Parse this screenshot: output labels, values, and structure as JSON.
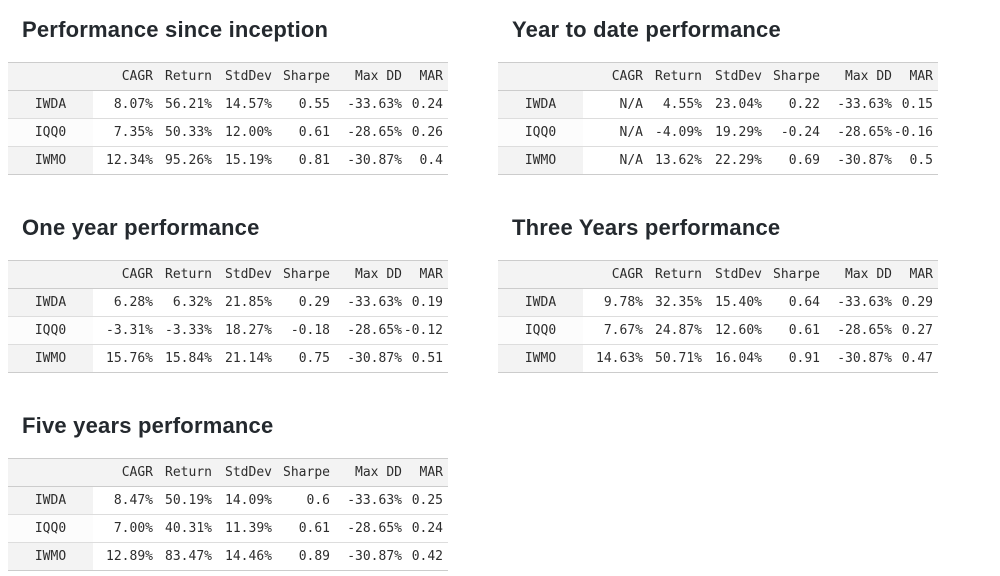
{
  "colors": {
    "page_background": "#ffffff",
    "header_row_bg": "#f3f3f3",
    "odd_row_index_bg": "#f3f3f3",
    "table_border": "#cccccc",
    "row_divider": "#dddddd",
    "table_text": "#2d2d2d",
    "title_text": "#24292e"
  },
  "chart_data": [
    {
      "type": "table",
      "title": "Performance since inception",
      "columns": [
        "",
        "CAGR",
        "Return",
        "StdDev",
        "Sharpe",
        "Max DD",
        "MAR"
      ],
      "rows": [
        [
          "IWDA",
          "8.07%",
          "56.21%",
          "14.57%",
          "0.55",
          "-33.63%",
          "0.24"
        ],
        [
          "IQQ0",
          "7.35%",
          "50.33%",
          "12.00%",
          "0.61",
          "-28.65%",
          "0.26"
        ],
        [
          "IWMO",
          "12.34%",
          "95.26%",
          "15.19%",
          "0.81",
          "-30.87%",
          "0.4"
        ]
      ]
    },
    {
      "type": "table",
      "title": "Year to date performance",
      "columns": [
        "",
        "CAGR",
        "Return",
        "StdDev",
        "Sharpe",
        "Max DD",
        "MAR"
      ],
      "rows": [
        [
          "IWDA",
          "N/A",
          "4.55%",
          "23.04%",
          "0.22",
          "-33.63%",
          "0.15"
        ],
        [
          "IQQ0",
          "N/A",
          "-4.09%",
          "19.29%",
          "-0.24",
          "-28.65%",
          "-0.16"
        ],
        [
          "IWMO",
          "N/A",
          "13.62%",
          "22.29%",
          "0.69",
          "-30.87%",
          "0.5"
        ]
      ]
    },
    {
      "type": "table",
      "title": "One year performance",
      "columns": [
        "",
        "CAGR",
        "Return",
        "StdDev",
        "Sharpe",
        "Max DD",
        "MAR"
      ],
      "rows": [
        [
          "IWDA",
          "6.28%",
          "6.32%",
          "21.85%",
          "0.29",
          "-33.63%",
          "0.19"
        ],
        [
          "IQQ0",
          "-3.31%",
          "-3.33%",
          "18.27%",
          "-0.18",
          "-28.65%",
          "-0.12"
        ],
        [
          "IWMO",
          "15.76%",
          "15.84%",
          "21.14%",
          "0.75",
          "-30.87%",
          "0.51"
        ]
      ]
    },
    {
      "type": "table",
      "title": "Three Years performance",
      "columns": [
        "",
        "CAGR",
        "Return",
        "StdDev",
        "Sharpe",
        "Max DD",
        "MAR"
      ],
      "rows": [
        [
          "IWDA",
          "9.78%",
          "32.35%",
          "15.40%",
          "0.64",
          "-33.63%",
          "0.29"
        ],
        [
          "IQQ0",
          "7.67%",
          "24.87%",
          "12.60%",
          "0.61",
          "-28.65%",
          "0.27"
        ],
        [
          "IWMO",
          "14.63%",
          "50.71%",
          "16.04%",
          "0.91",
          "-30.87%",
          "0.47"
        ]
      ]
    },
    {
      "type": "table",
      "title": "Five years performance",
      "columns": [
        "",
        "CAGR",
        "Return",
        "StdDev",
        "Sharpe",
        "Max DD",
        "MAR"
      ],
      "rows": [
        [
          "IWDA",
          "8.47%",
          "50.19%",
          "14.09%",
          "0.6",
          "-33.63%",
          "0.25"
        ],
        [
          "IQQ0",
          "7.00%",
          "40.31%",
          "11.39%",
          "0.61",
          "-28.65%",
          "0.24"
        ],
        [
          "IWMO",
          "12.89%",
          "83.47%",
          "14.46%",
          "0.89",
          "-30.87%",
          "0.42"
        ]
      ]
    }
  ]
}
